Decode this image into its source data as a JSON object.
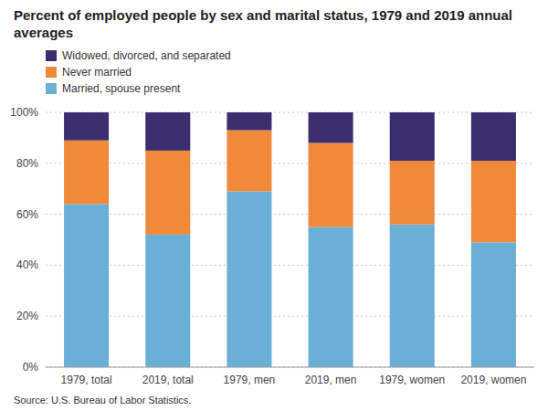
{
  "chart_data": {
    "type": "bar",
    "stacked": true,
    "title": "Percent of employed people by sex and marital status, 1979 and 2019 annual averages",
    "annotations": [
      "Source: U.S. Bureau of Labor Statistics."
    ],
    "categories": [
      "1979, total",
      "2019, total",
      "1979, men",
      "2019, men",
      "1979, women",
      "2019, women"
    ],
    "series": [
      {
        "name": "Married, spouse present",
        "color": "#6aafd6",
        "values": [
          64,
          52,
          69,
          55,
          56,
          49
        ]
      },
      {
        "name": "Never married",
        "color": "#f0893a",
        "values": [
          25,
          33,
          24,
          33,
          25,
          32
        ]
      },
      {
        "name": "Widowed, divorced, and separated",
        "color": "#3b2d6e",
        "values": [
          11,
          15,
          7,
          12,
          19,
          19
        ]
      }
    ],
    "ylim": [
      0,
      100
    ],
    "yticks": [
      {
        "value": 0,
        "label": "0%"
      },
      {
        "value": 20,
        "label": "20%"
      },
      {
        "value": 40,
        "label": "40%"
      },
      {
        "value": 60,
        "label": "60%"
      },
      {
        "value": 80,
        "label": "80%"
      },
      {
        "value": 100,
        "label": "100%"
      }
    ],
    "grid": true,
    "legend": "upper left"
  }
}
